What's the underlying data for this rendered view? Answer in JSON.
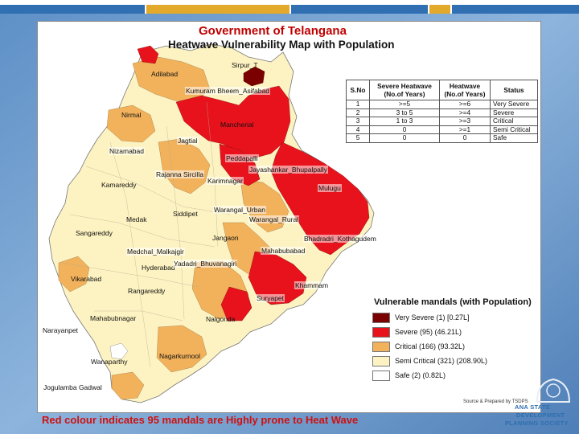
{
  "title": "Government of Telangana",
  "subtitle": "Heatwave Vulnerability Map with Population",
  "places": [
    {
      "name": "Sirpur_T"
    },
    {
      "name": "Adilabad"
    },
    {
      "name": "Kumuram Bheem_Asifabad"
    },
    {
      "name": "Nirmal"
    },
    {
      "name": "Mancherial"
    },
    {
      "name": "Jagtial"
    },
    {
      "name": "Nizamabad"
    },
    {
      "name": "Peddapalli"
    },
    {
      "name": "Jayashankar_Bhupalpally"
    },
    {
      "name": "Rajanna Sircilla"
    },
    {
      "name": "Karimnagar"
    },
    {
      "name": "Kamareddy"
    },
    {
      "name": "Mulugu"
    },
    {
      "name": "Warangal_Urban"
    },
    {
      "name": "Siddipet"
    },
    {
      "name": "Medak"
    },
    {
      "name": "Warangal_Rural"
    },
    {
      "name": "Sangareddy"
    },
    {
      "name": "Jangaon"
    },
    {
      "name": "Bhadradri_Kothagudem"
    },
    {
      "name": "Medchal_Malkajgir"
    },
    {
      "name": "Mahabubabad"
    },
    {
      "name": "Hyderabad"
    },
    {
      "name": "Yadadri_Bhuvanagiri"
    },
    {
      "name": "Vikarabad"
    },
    {
      "name": "Rangareddy"
    },
    {
      "name": "Khammam"
    },
    {
      "name": "Suryapet"
    },
    {
      "name": "Mahabubnagar"
    },
    {
      "name": "Nalgonda"
    },
    {
      "name": "Narayanpet"
    },
    {
      "name": "Nagarkurnool"
    },
    {
      "name": "Wanaparthy"
    },
    {
      "name": "Jogulamba Gadwal"
    }
  ],
  "severity_table": {
    "headers": [
      "S.No",
      "Severe Heatwave (No.of Years)",
      "Heatwave (No.of Years)",
      "Status"
    ],
    "rows": [
      [
        "1",
        ">=5",
        ">=6",
        "Very Severe"
      ],
      [
        "2",
        "3 to 5",
        ">=4",
        "Severe"
      ],
      [
        "3",
        "1 to 3",
        ">=3",
        "Critical"
      ],
      [
        "4",
        "0",
        ">=1",
        "Semi Critical"
      ],
      [
        "5",
        "0",
        "0",
        "Safe"
      ]
    ]
  },
  "legend": {
    "title": "Vulnerable mandals (with Population)",
    "items": [
      {
        "label": "Very Severe (1) [0.27L]",
        "color": "#7b0000"
      },
      {
        "label": "Severe (95) (46.21L)",
        "color": "#e8121c"
      },
      {
        "label": "Critical (166) (93.32L)",
        "color": "#f2b25b"
      },
      {
        "label": "Semi Critical (321) (208.90L)",
        "color": "#fdf3c2"
      },
      {
        "label": "Safe (2) (0.82L)",
        "color": "#ffffff"
      }
    ]
  },
  "source": "Source & Prepared by TSDPS",
  "caption": "Red colour indicates 95 mandals  are Highly prone to Heat Wave",
  "logo": {
    "line1": "ANA STATE",
    "line2": "DEVELOPMENT",
    "line3": "PLANNING SOCIETY"
  },
  "colors": {
    "very_severe": "#7b0000",
    "severe": "#e8121c",
    "critical": "#f2b25b",
    "semi_critical": "#fdf3c2",
    "safe": "#ffffff",
    "slide_blue": "#2f6fb2",
    "slide_gold": "#e3a92b",
    "caption_red": "#d01010"
  }
}
